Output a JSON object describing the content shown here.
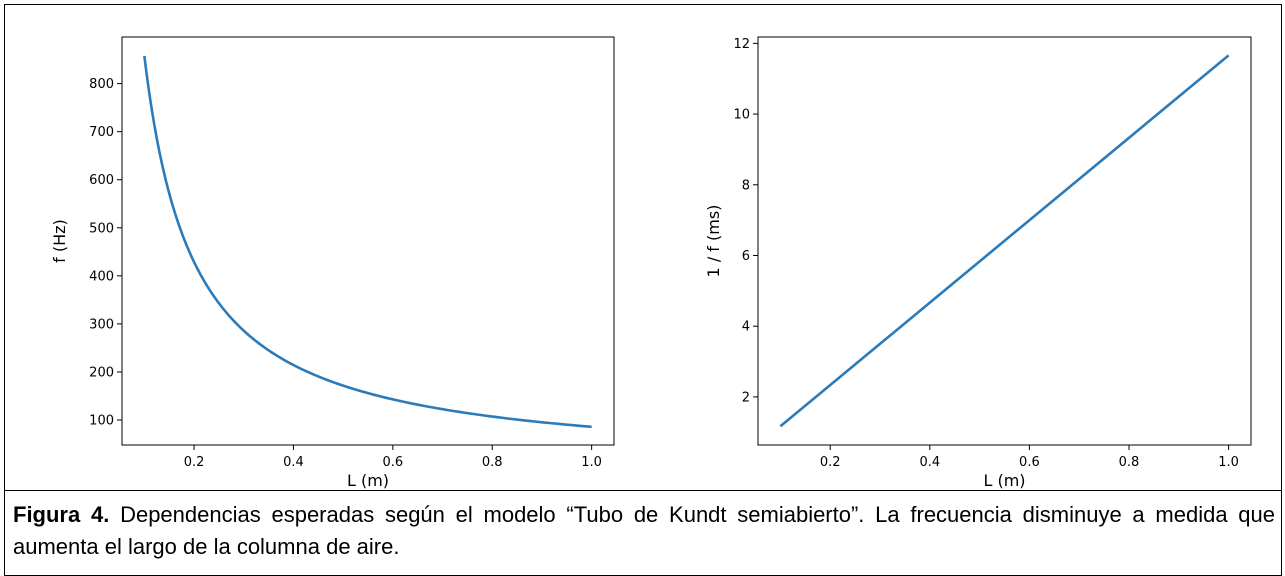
{
  "caption": {
    "label": "Figura 4.",
    "text": " Dependencias esperadas según el modelo “Tubo de Kundt semiabierto”. La frecuencia disminuye a medida que aumenta el largo de la columna de aire."
  },
  "line_color": "#2b7bba",
  "chart_data": [
    {
      "type": "line",
      "title": "",
      "xlabel": "L (m)",
      "ylabel": "f (Hz)",
      "xlim": [
        0.055,
        1.045
      ],
      "ylim": [
        48,
        897
      ],
      "xticks": [
        0.2,
        0.4,
        0.6,
        0.8,
        1.0
      ],
      "xtick_labels": [
        "0.2",
        "0.4",
        "0.6",
        "0.8",
        "1.0"
      ],
      "yticks": [
        100,
        200,
        300,
        400,
        500,
        600,
        700,
        800
      ],
      "ytick_labels": [
        "100",
        "200",
        "300",
        "400",
        "500",
        "600",
        "700",
        "800"
      ],
      "grid": false,
      "x": [
        0.1,
        0.12,
        0.14,
        0.16,
        0.18,
        0.2,
        0.25,
        0.3,
        0.35,
        0.4,
        0.45,
        0.5,
        0.6,
        0.7,
        0.8,
        0.9,
        1.0
      ],
      "y": [
        857.5,
        714.6,
        612.5,
        535.9,
        476.4,
        428.8,
        343.0,
        285.8,
        245.0,
        214.4,
        190.6,
        171.5,
        142.9,
        122.5,
        107.2,
        95.3,
        85.8
      ]
    },
    {
      "type": "line",
      "title": "",
      "xlabel": "L (m)",
      "ylabel": "1 / f   (ms)",
      "xlim": [
        0.055,
        1.045
      ],
      "ylim": [
        0.64,
        12.18
      ],
      "xticks": [
        0.2,
        0.4,
        0.6,
        0.8,
        1.0
      ],
      "xtick_labels": [
        "0.2",
        "0.4",
        "0.6",
        "0.8",
        "1.0"
      ],
      "yticks": [
        2,
        4,
        6,
        8,
        10,
        12
      ],
      "ytick_labels": [
        "2",
        "4",
        "6",
        "8",
        "10",
        "12"
      ],
      "grid": false,
      "x": [
        0.1,
        1.0
      ],
      "y": [
        1.17,
        11.66
      ]
    }
  ]
}
